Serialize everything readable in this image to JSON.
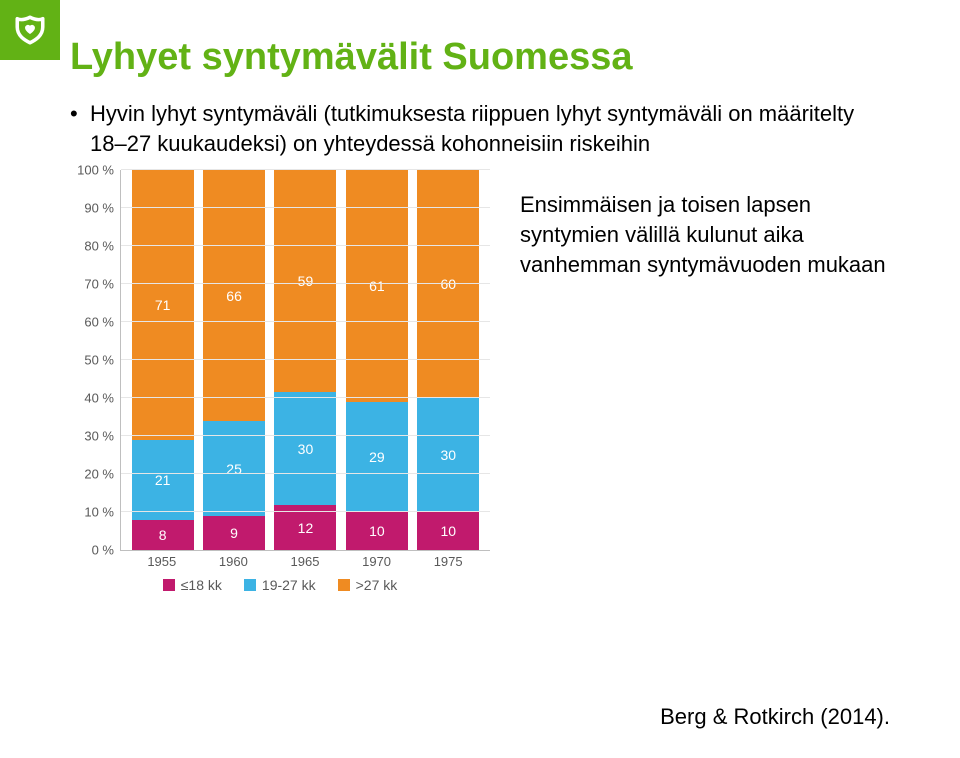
{
  "accent": "#62b215",
  "title": "Lyhyet syntymävälit Suomessa",
  "bullet": "Hyvin lyhyt syntymäväli (tutkimuksesta riippuen lyhyt syntymäväli on määritelty 18–27 kuukaudeksi) on yhteydessä kohonneisiin riskeihin",
  "caption": "Ensimmäisen ja toisen lapsen syntymien välillä kulunut aika vanhemman syntymävuoden mukaan",
  "reference": "Berg & Rotkirch (2014).",
  "chart": {
    "type": "stacked-bar",
    "ylim": [
      0,
      100
    ],
    "ytick_step": 10,
    "y_suffix": " %",
    "grid_color": "#e6e6e6",
    "axis_color": "#bfbfbf",
    "tick_font_color": "#595959",
    "tick_fontsize": 13,
    "value_font_color": "#ffffff",
    "value_fontsize": 14,
    "background": "#ffffff",
    "categories": [
      "1955",
      "1960",
      "1965",
      "1970",
      "1975"
    ],
    "series": [
      {
        "key": "le18",
        "label": "≤18 kk",
        "color": "#c11a6d"
      },
      {
        "key": "m1927",
        "label": "19-27 kk",
        "color": "#3cb3e4"
      },
      {
        "key": "gt27",
        "label": ">27 kk",
        "color": "#ef8b22"
      }
    ],
    "data": {
      "le18": [
        8,
        9,
        12,
        10,
        10
      ],
      "m1927": [
        21,
        25,
        30,
        29,
        30
      ],
      "gt27": [
        71,
        66,
        59,
        61,
        60
      ]
    }
  }
}
